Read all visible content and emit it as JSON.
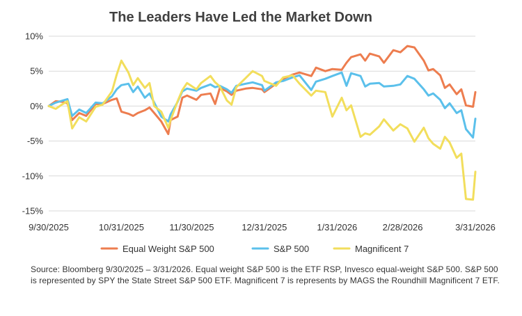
{
  "chart_data": {
    "type": "line",
    "title": "The Leaders Have Led the Market Down",
    "xlabel": "",
    "ylabel": "",
    "ylim": [
      -15,
      10
    ],
    "y_ticks": [
      10,
      5,
      0,
      -5,
      -10,
      -15
    ],
    "y_tick_labels": [
      "10%",
      "5%",
      "0%",
      "-5%",
      "-10%",
      "-15%"
    ],
    "x_ticks": [
      "9/30/2025",
      "10/31/2025",
      "11/30/2025",
      "12/31/2025",
      "1/31/2026",
      "2/28/2026",
      "3/31/2026"
    ],
    "grid": "horizontal",
    "legend_position": "bottom",
    "series": [
      {
        "name": "Equal Weight S&P 500",
        "color": "#ED7D4F",
        "points": [
          [
            "2025-09-30",
            0.0
          ],
          [
            "2025-10-03",
            0.7
          ],
          [
            "2025-10-06",
            0.6
          ],
          [
            "2025-10-08",
            0.4
          ],
          [
            "2025-10-10",
            -2.0
          ],
          [
            "2025-10-13",
            -1.0
          ],
          [
            "2025-10-16",
            -1.4
          ],
          [
            "2025-10-20",
            0.3
          ],
          [
            "2025-10-23",
            0.3
          ],
          [
            "2025-10-27",
            0.9
          ],
          [
            "2025-10-29",
            1.1
          ],
          [
            "2025-10-31",
            -0.8
          ],
          [
            "2025-11-03",
            -1.1
          ],
          [
            "2025-11-05",
            -1.4
          ],
          [
            "2025-11-07",
            -1.0
          ],
          [
            "2025-11-10",
            -0.6
          ],
          [
            "2025-11-12",
            -0.2
          ],
          [
            "2025-11-14",
            -1.0
          ],
          [
            "2025-11-17",
            -2.2
          ],
          [
            "2025-11-20",
            -4.0
          ],
          [
            "2025-11-21",
            -2.0
          ],
          [
            "2025-11-24",
            -1.5
          ],
          [
            "2025-11-26",
            1.2
          ],
          [
            "2025-11-28",
            1.5
          ],
          [
            "2025-12-02",
            0.9
          ],
          [
            "2025-12-04",
            1.6
          ],
          [
            "2025-12-08",
            1.8
          ],
          [
            "2025-12-10",
            0.3
          ],
          [
            "2025-12-12",
            2.6
          ],
          [
            "2025-12-15",
            2.1
          ],
          [
            "2025-12-17",
            1.6
          ],
          [
            "2025-12-19",
            2.2
          ],
          [
            "2025-12-23",
            2.5
          ],
          [
            "2025-12-26",
            2.6
          ],
          [
            "2025-12-30",
            2.4
          ],
          [
            "2025-12-31",
            2.0
          ],
          [
            "2026-01-05",
            3.2
          ],
          [
            "2026-01-08",
            3.9
          ],
          [
            "2026-01-12",
            4.5
          ],
          [
            "2026-01-15",
            4.8
          ],
          [
            "2026-01-20",
            4.3
          ],
          [
            "2026-01-22",
            5.5
          ],
          [
            "2026-01-26",
            5.0
          ],
          [
            "2026-01-29",
            5.3
          ],
          [
            "2026-02-02",
            5.2
          ],
          [
            "2026-02-04",
            6.2
          ],
          [
            "2026-02-06",
            7.0
          ],
          [
            "2026-02-10",
            7.4
          ],
          [
            "2026-02-12",
            6.5
          ],
          [
            "2026-02-14",
            7.5
          ],
          [
            "2026-02-18",
            7.1
          ],
          [
            "2026-02-20",
            6.2
          ],
          [
            "2026-02-24",
            8.0
          ],
          [
            "2026-02-27",
            7.7
          ],
          [
            "2026-03-02",
            8.6
          ],
          [
            "2026-03-05",
            8.4
          ],
          [
            "2026-03-09",
            6.5
          ],
          [
            "2026-03-11",
            5.1
          ],
          [
            "2026-03-13",
            5.3
          ],
          [
            "2026-03-16",
            4.4
          ],
          [
            "2026-03-18",
            2.6
          ],
          [
            "2026-03-20",
            3.1
          ],
          [
            "2026-03-23",
            1.7
          ],
          [
            "2026-03-25",
            2.4
          ],
          [
            "2026-03-27",
            0.1
          ],
          [
            "2026-03-30",
            -0.1
          ],
          [
            "2026-03-31",
            2.0
          ]
        ]
      },
      {
        "name": "S&P 500",
        "color": "#5BC0EB",
        "points": [
          [
            "2025-09-30",
            0.0
          ],
          [
            "2025-10-03",
            0.5
          ],
          [
            "2025-10-06",
            0.8
          ],
          [
            "2025-10-08",
            1.0
          ],
          [
            "2025-10-10",
            -1.4
          ],
          [
            "2025-10-13",
            -0.5
          ],
          [
            "2025-10-16",
            -1.0
          ],
          [
            "2025-10-20",
            0.5
          ],
          [
            "2025-10-23",
            0.4
          ],
          [
            "2025-10-27",
            1.4
          ],
          [
            "2025-10-29",
            2.4
          ],
          [
            "2025-10-31",
            3.0
          ],
          [
            "2025-11-03",
            3.2
          ],
          [
            "2025-11-05",
            2.0
          ],
          [
            "2025-11-07",
            2.8
          ],
          [
            "2025-11-10",
            1.2
          ],
          [
            "2025-11-12",
            1.8
          ],
          [
            "2025-11-14",
            0.5
          ],
          [
            "2025-11-17",
            -1.5
          ],
          [
            "2025-11-20",
            -2.2
          ],
          [
            "2025-11-21",
            -1.2
          ],
          [
            "2025-11-24",
            0.6
          ],
          [
            "2025-11-26",
            2.1
          ],
          [
            "2025-11-28",
            2.5
          ],
          [
            "2025-12-02",
            2.2
          ],
          [
            "2025-12-04",
            2.6
          ],
          [
            "2025-12-08",
            3.1
          ],
          [
            "2025-12-10",
            2.7
          ],
          [
            "2025-12-12",
            2.9
          ],
          [
            "2025-12-15",
            2.4
          ],
          [
            "2025-12-17",
            1.9
          ],
          [
            "2025-12-19",
            2.9
          ],
          [
            "2025-12-23",
            3.2
          ],
          [
            "2025-12-26",
            3.4
          ],
          [
            "2025-12-30",
            3.0
          ],
          [
            "2025-12-31",
            2.2
          ],
          [
            "2026-01-05",
            3.4
          ],
          [
            "2026-01-08",
            3.6
          ],
          [
            "2026-01-12",
            4.1
          ],
          [
            "2026-01-15",
            4.4
          ],
          [
            "2026-01-20",
            2.3
          ],
          [
            "2026-01-22",
            3.5
          ],
          [
            "2026-01-26",
            3.9
          ],
          [
            "2026-01-29",
            4.3
          ],
          [
            "2026-02-02",
            4.8
          ],
          [
            "2026-02-04",
            2.9
          ],
          [
            "2026-02-06",
            4.7
          ],
          [
            "2026-02-10",
            4.3
          ],
          [
            "2026-02-12",
            2.8
          ],
          [
            "2026-02-14",
            3.2
          ],
          [
            "2026-02-18",
            3.3
          ],
          [
            "2026-02-20",
            2.8
          ],
          [
            "2026-02-24",
            2.9
          ],
          [
            "2026-02-27",
            3.1
          ],
          [
            "2026-03-02",
            4.3
          ],
          [
            "2026-03-05",
            3.9
          ],
          [
            "2026-03-09",
            2.4
          ],
          [
            "2026-03-11",
            1.5
          ],
          [
            "2026-03-13",
            1.8
          ],
          [
            "2026-03-16",
            0.9
          ],
          [
            "2026-03-18",
            -0.3
          ],
          [
            "2026-03-20",
            0.4
          ],
          [
            "2026-03-23",
            -1.0
          ],
          [
            "2026-03-25",
            -0.6
          ],
          [
            "2026-03-27",
            -3.3
          ],
          [
            "2026-03-30",
            -4.5
          ],
          [
            "2026-03-31",
            -1.8
          ]
        ]
      },
      {
        "name": "Magnificent 7",
        "color": "#F2DE5C",
        "points": [
          [
            "2025-09-30",
            0.0
          ],
          [
            "2025-10-03",
            -0.4
          ],
          [
            "2025-10-06",
            0.3
          ],
          [
            "2025-10-08",
            0.7
          ],
          [
            "2025-10-10",
            -3.2
          ],
          [
            "2025-10-13",
            -1.6
          ],
          [
            "2025-10-16",
            -2.2
          ],
          [
            "2025-10-20",
            -0.1
          ],
          [
            "2025-10-23",
            0.2
          ],
          [
            "2025-10-27",
            2.1
          ],
          [
            "2025-10-29",
            4.5
          ],
          [
            "2025-10-31",
            6.5
          ],
          [
            "2025-11-03",
            4.8
          ],
          [
            "2025-11-05",
            3.0
          ],
          [
            "2025-11-07",
            4.0
          ],
          [
            "2025-11-10",
            2.6
          ],
          [
            "2025-11-12",
            3.3
          ],
          [
            "2025-11-14",
            0.0
          ],
          [
            "2025-11-17",
            -0.8
          ],
          [
            "2025-11-20",
            -3.1
          ],
          [
            "2025-11-21",
            -2.0
          ],
          [
            "2025-11-24",
            0.7
          ],
          [
            "2025-11-26",
            2.3
          ],
          [
            "2025-11-28",
            3.3
          ],
          [
            "2025-12-02",
            2.4
          ],
          [
            "2025-12-04",
            3.3
          ],
          [
            "2025-12-08",
            4.3
          ],
          [
            "2025-12-10",
            3.4
          ],
          [
            "2025-12-12",
            2.8
          ],
          [
            "2025-12-15",
            0.8
          ],
          [
            "2025-12-17",
            0.2
          ],
          [
            "2025-12-19",
            2.7
          ],
          [
            "2025-12-23",
            4.0
          ],
          [
            "2025-12-26",
            5.0
          ],
          [
            "2025-12-30",
            4.3
          ],
          [
            "2025-12-31",
            3.6
          ],
          [
            "2026-01-05",
            2.9
          ],
          [
            "2026-01-08",
            4.1
          ],
          [
            "2026-01-12",
            4.4
          ],
          [
            "2026-01-15",
            3.2
          ],
          [
            "2026-01-20",
            1.5
          ],
          [
            "2026-01-22",
            2.2
          ],
          [
            "2026-01-26",
            2.0
          ],
          [
            "2026-01-29",
            -1.5
          ],
          [
            "2026-02-02",
            1.2
          ],
          [
            "2026-02-04",
            -0.6
          ],
          [
            "2026-02-06",
            0.1
          ],
          [
            "2026-02-10",
            -4.4
          ],
          [
            "2026-02-12",
            -3.9
          ],
          [
            "2026-02-14",
            -4.1
          ],
          [
            "2026-02-18",
            -2.9
          ],
          [
            "2026-02-20",
            -1.9
          ],
          [
            "2026-02-24",
            -3.5
          ],
          [
            "2026-02-27",
            -2.6
          ],
          [
            "2026-03-02",
            -3.2
          ],
          [
            "2026-03-05",
            -5.1
          ],
          [
            "2026-03-09",
            -3.1
          ],
          [
            "2026-03-11",
            -4.6
          ],
          [
            "2026-03-13",
            -5.4
          ],
          [
            "2026-03-16",
            -6.1
          ],
          [
            "2026-03-18",
            -4.4
          ],
          [
            "2026-03-20",
            -5.2
          ],
          [
            "2026-03-23",
            -7.4
          ],
          [
            "2026-03-25",
            -6.8
          ],
          [
            "2026-03-27",
            -13.3
          ],
          [
            "2026-03-30",
            -13.4
          ],
          [
            "2026-03-31",
            -9.4
          ]
        ]
      }
    ]
  },
  "legend": {
    "items": [
      "Equal Weight S&P 500",
      "S&P 500",
      "Magnificent 7"
    ]
  },
  "source_note": "Source: Bloomberg 9/30/2025 – 3/31/2026. Equal weight S&P 500 is the ETF RSP, Invesco equal-weight S&P 500. S&P 500 is represented by SPY the State Street S&P 500 ETF. Magnificent 7 is represents by MAGS the Roundhill Magnificent 7 ETF."
}
